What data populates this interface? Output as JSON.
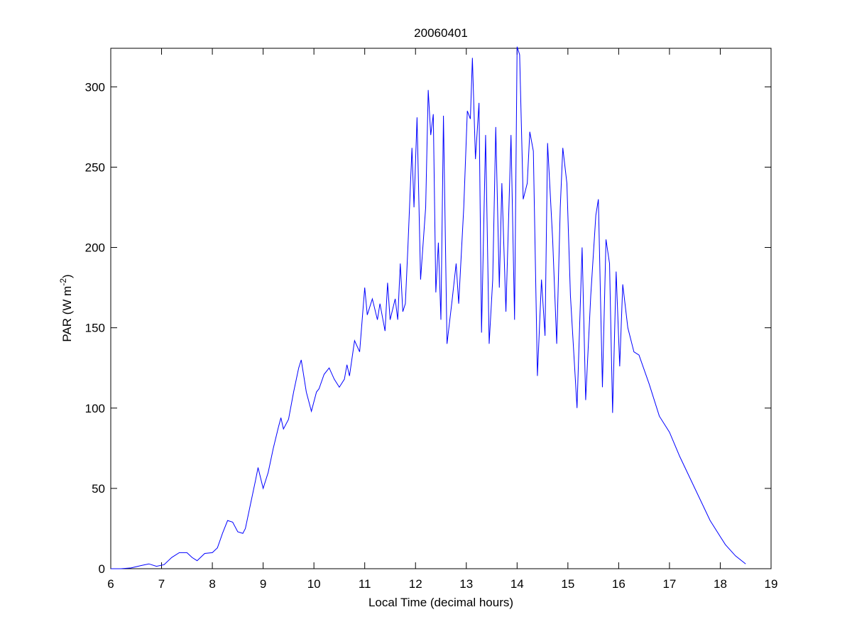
{
  "chart_data": {
    "type": "line",
    "title": "20060401",
    "xlabel": "Local Time (decimal hours)",
    "ylabel": [
      "PAR (W m",
      "-2",
      ")"
    ],
    "xlim": [
      6,
      19
    ],
    "xticks": [
      6,
      7,
      8,
      9,
      10,
      11,
      12,
      13,
      14,
      15,
      16,
      17,
      18,
      19
    ],
    "ylim": [
      0,
      324
    ],
    "yticks": [
      0,
      50,
      100,
      150,
      200,
      250,
      300
    ],
    "grid": false,
    "x": [
      6.0,
      6.2,
      6.4,
      6.6,
      6.75,
      6.9,
      7.05,
      7.2,
      7.35,
      7.5,
      7.6,
      7.7,
      7.85,
      8.0,
      8.1,
      8.2,
      8.3,
      8.4,
      8.5,
      8.6,
      8.65,
      8.75,
      8.85,
      8.9,
      9.0,
      9.1,
      9.2,
      9.3,
      9.35,
      9.4,
      9.5,
      9.6,
      9.7,
      9.75,
      9.85,
      9.95,
      10.05,
      10.1,
      10.2,
      10.3,
      10.4,
      10.5,
      10.6,
      10.65,
      10.7,
      10.8,
      10.9,
      11.0,
      11.05,
      11.15,
      11.25,
      11.3,
      11.4,
      11.45,
      11.5,
      11.6,
      11.65,
      11.7,
      11.75,
      11.8,
      11.85,
      11.93,
      11.97,
      12.03,
      12.1,
      12.2,
      12.25,
      12.3,
      12.35,
      12.4,
      12.45,
      12.5,
      12.55,
      12.62,
      12.72,
      12.8,
      12.85,
      12.95,
      13.02,
      13.08,
      13.12,
      13.18,
      13.25,
      13.3,
      13.38,
      13.45,
      13.52,
      13.58,
      13.65,
      13.7,
      13.78,
      13.88,
      13.95,
      14.0,
      14.05,
      14.12,
      14.2,
      14.25,
      14.32,
      14.4,
      14.48,
      14.55,
      14.6,
      14.7,
      14.78,
      14.85,
      14.9,
      14.98,
      15.05,
      15.18,
      15.28,
      15.35,
      15.45,
      15.55,
      15.6,
      15.68,
      15.75,
      15.82,
      15.88,
      15.95,
      16.02,
      16.08,
      16.18,
      16.3,
      16.4,
      16.6,
      16.8,
      17.0,
      17.2,
      17.5,
      17.8,
      18.1,
      18.3,
      18.5
    ],
    "series": [
      {
        "color": "#0000ff",
        "values": [
          0,
          0,
          0.5,
          2,
          3,
          1.5,
          2.5,
          7,
          10,
          10,
          7,
          5,
          9.5,
          10,
          13,
          22,
          30,
          29,
          23,
          22,
          25,
          40,
          55,
          63,
          50,
          60,
          75,
          88,
          94,
          87,
          93,
          110,
          125,
          130,
          110,
          98,
          110,
          112,
          121,
          125,
          118,
          113,
          118,
          127,
          120,
          142,
          135,
          175,
          158,
          168,
          155,
          165,
          148,
          178,
          155,
          168,
          155,
          190,
          160,
          165,
          200,
          262,
          225,
          281,
          180,
          225,
          298,
          270,
          283,
          172,
          203,
          155,
          282,
          140,
          167,
          190,
          165,
          225,
          285,
          280,
          318,
          255,
          290,
          147,
          270,
          140,
          180,
          275,
          175,
          240,
          160,
          270,
          155,
          325,
          320,
          230,
          240,
          272,
          260,
          120,
          180,
          145,
          265,
          205,
          140,
          225,
          262,
          240,
          170,
          100,
          200,
          105,
          170,
          220,
          230,
          113,
          205,
          190,
          97,
          185,
          126,
          177,
          150,
          135,
          133,
          115,
          95,
          85,
          70,
          50,
          30,
          15,
          8,
          3
        ]
      }
    ]
  }
}
